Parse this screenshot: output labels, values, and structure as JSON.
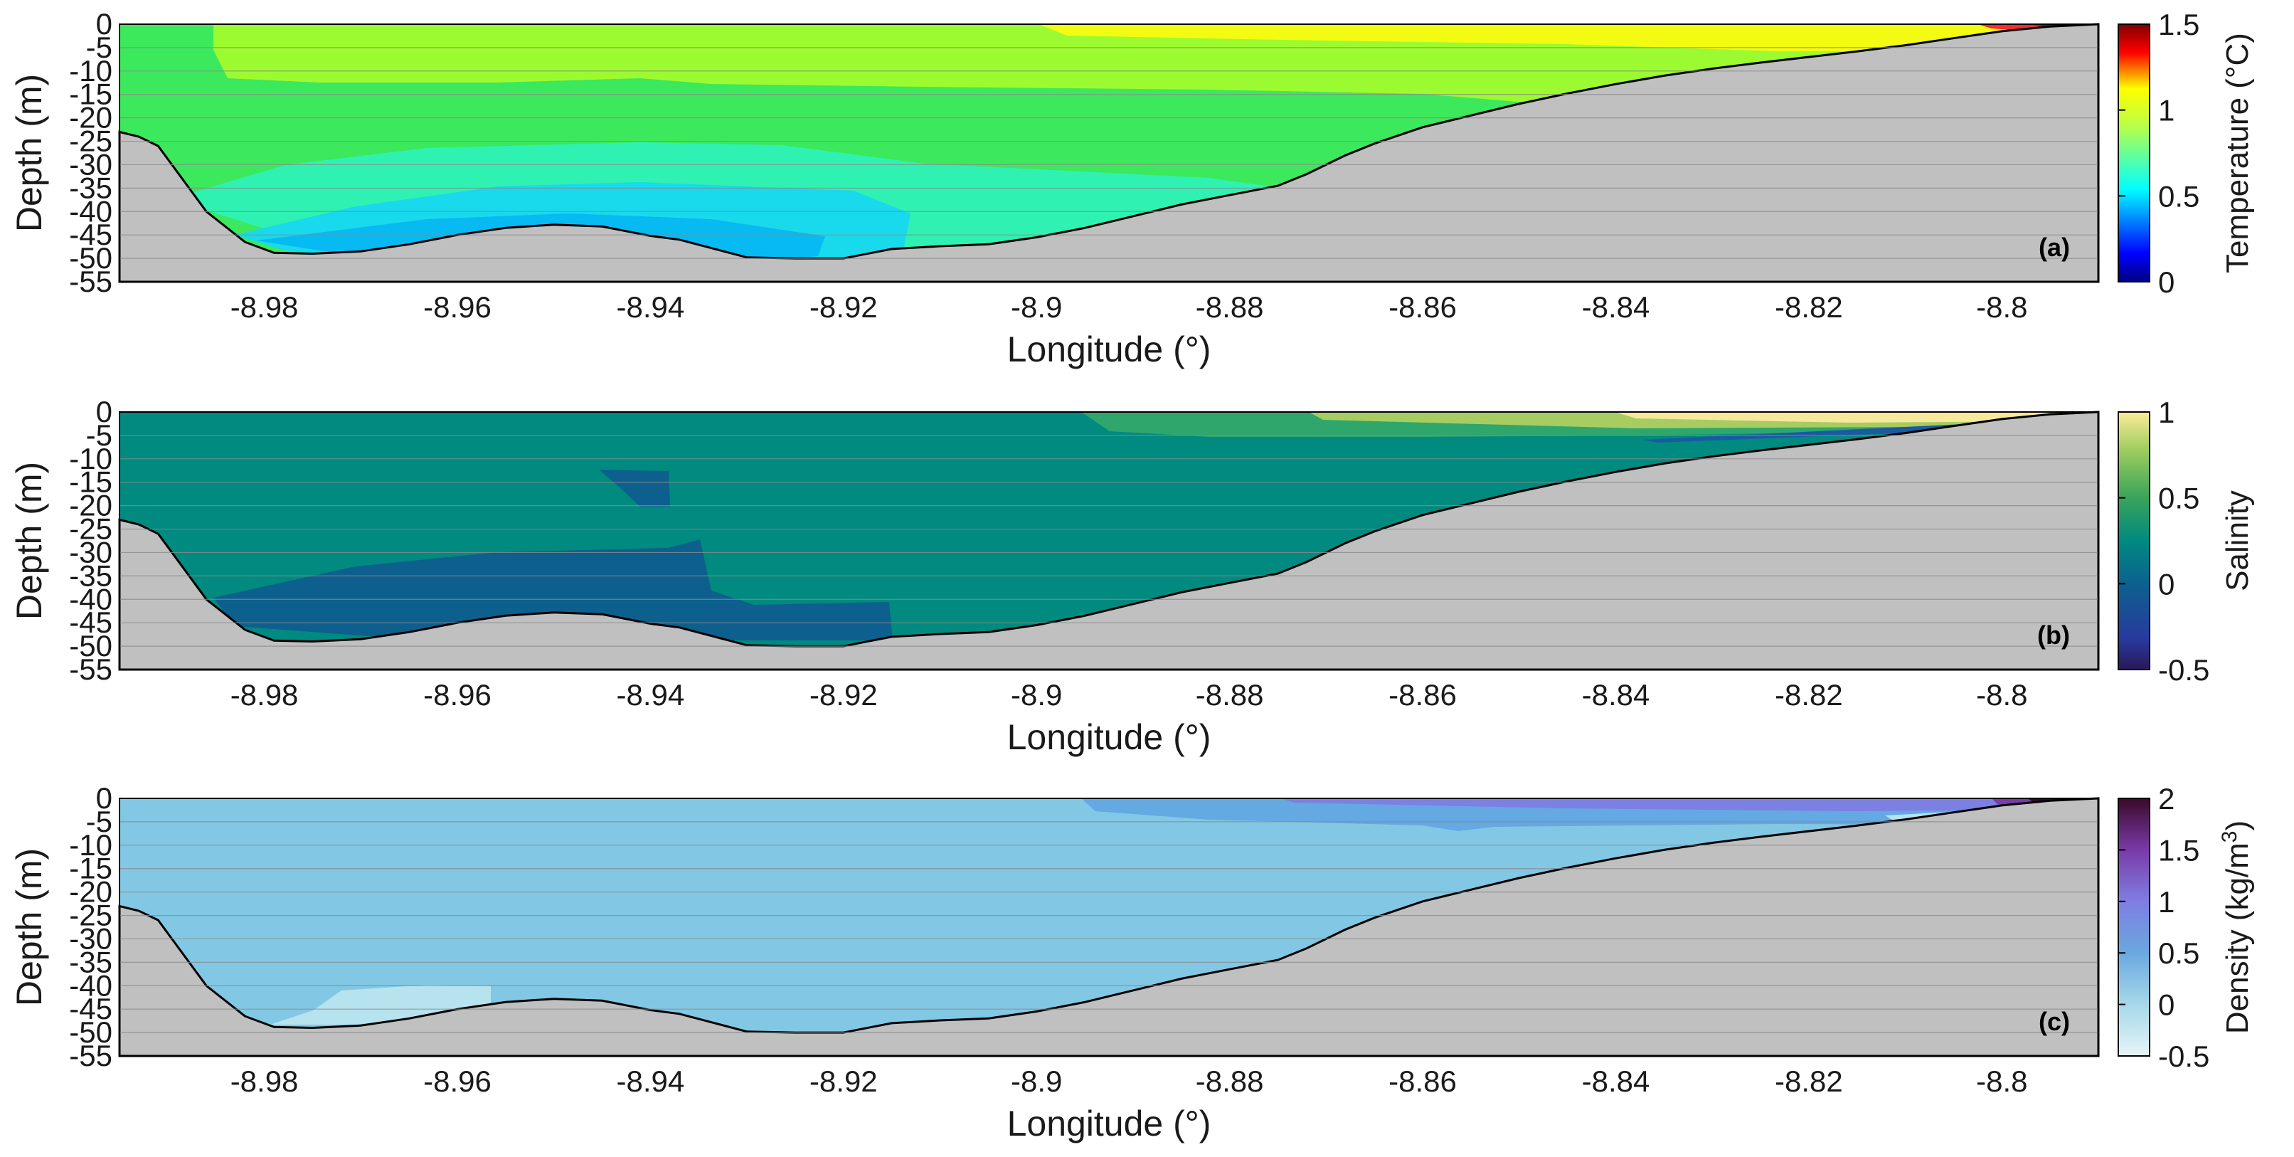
{
  "chart_data": [
    {
      "type": "heatmap",
      "panel_label": "(a)",
      "xlabel": "Longitude (°)",
      "ylabel": "Depth (m)",
      "xlim": [
        -8.995,
        -8.79
      ],
      "ylim": [
        -55,
        0
      ],
      "xticks": [
        "-8.98",
        "-8.96",
        "-8.94",
        "-8.92",
        "-8.9",
        "-8.88",
        "-8.86",
        "-8.84",
        "-8.82",
        "-8.8"
      ],
      "yticks": [
        "0",
        "-5",
        "-10",
        "-15",
        "-20",
        "-25",
        "-30",
        "-35",
        "-40",
        "-45",
        "-50",
        "-55"
      ],
      "grid": "horizontal",
      "colorbar": {
        "label": "Temperature (°C)",
        "ticks": [
          "0",
          "0.5",
          "1",
          "1.5"
        ],
        "range": [
          0,
          1.5
        ],
        "colormap": "jet"
      },
      "values": {
        "surface_east": 1.5,
        "surface_mid": 1.05,
        "surface_west": 0.95,
        "mid_depth": 0.8,
        "deep_basin": 0.55,
        "deepest": 0.5
      }
    },
    {
      "type": "heatmap",
      "panel_label": "(b)",
      "xlabel": "Longitude (°)",
      "ylabel": "Depth (m)",
      "xlim": [
        -8.995,
        -8.79
      ],
      "ylim": [
        -55,
        0
      ],
      "xticks": [
        "-8.98",
        "-8.96",
        "-8.94",
        "-8.92",
        "-8.9",
        "-8.88",
        "-8.86",
        "-8.84",
        "-8.82",
        "-8.8"
      ],
      "yticks": [
        "0",
        "-5",
        "-10",
        "-15",
        "-20",
        "-25",
        "-30",
        "-35",
        "-40",
        "-45",
        "-50",
        "-55"
      ],
      "grid": "horizontal",
      "colorbar": {
        "label": "Salinity",
        "ticks": [
          "1",
          "0.5",
          "0",
          "-0.5"
        ],
        "range": [
          -0.5,
          1
        ],
        "colormap": "haline"
      },
      "values": {
        "surface_east": 1.0,
        "surface_mid": 0.6,
        "bulk": 0.25,
        "deep_basin": 0.0,
        "thin_layer_east": -0.2
      }
    },
    {
      "type": "heatmap",
      "panel_label": "(c)",
      "xlabel": "Longitude (°)",
      "ylabel": "Depth (m)",
      "xlim": [
        -8.995,
        -8.79
      ],
      "ylim": [
        -55,
        0
      ],
      "xticks": [
        "-8.98",
        "-8.96",
        "-8.94",
        "-8.92",
        "-8.9",
        "-8.88",
        "-8.86",
        "-8.84",
        "-8.82",
        "-8.8"
      ],
      "yticks": [
        "0",
        "-5",
        "-10",
        "-15",
        "-20",
        "-25",
        "-30",
        "-35",
        "-40",
        "-45",
        "-50",
        "-55"
      ],
      "grid": "horizontal",
      "colorbar": {
        "label": "Density (kg/m",
        "label_sup": "3",
        "label_end": ")",
        "ticks": [
          "2",
          "1.5",
          "1",
          "0.5",
          "0",
          "-0.5"
        ],
        "range": [
          -0.5,
          2
        ],
        "colormap": "dense"
      },
      "values": {
        "surface_east": 2.0,
        "surface_mid": 0.9,
        "upper_layer": 0.4,
        "bulk": 0.1,
        "deep_patch": -0.3
      }
    }
  ],
  "seabed_profile": {
    "lon": [
      -8.995,
      -8.993,
      -8.991,
      -8.986,
      -8.982,
      -8.979,
      -8.975,
      -8.97,
      -8.965,
      -8.96,
      -8.955,
      -8.95,
      -8.945,
      -8.94,
      -8.937,
      -8.93,
      -8.925,
      -8.92,
      -8.918,
      -8.915,
      -8.91,
      -8.905,
      -8.9,
      -8.895,
      -8.89,
      -8.885,
      -8.88,
      -8.875,
      -8.872,
      -8.868,
      -8.865,
      -8.86,
      -8.855,
      -8.85,
      -8.845,
      -8.84,
      -8.835,
      -8.83,
      -8.825,
      -8.82,
      -8.815,
      -8.81,
      -8.805,
      -8.8,
      -8.795,
      -8.79
    ],
    "depth": [
      -23,
      -24,
      -26,
      -40,
      -46.5,
      -48.8,
      -49,
      -48.5,
      -47,
      -45,
      -43.5,
      -42.8,
      -43.2,
      -45.2,
      -46,
      -49.8,
      -50,
      -50,
      -49.2,
      -48,
      -47.4,
      -47,
      -45.5,
      -43.5,
      -41,
      -38.5,
      -36.5,
      -34.5,
      -32,
      -28,
      -25.5,
      -22,
      -19.5,
      -17,
      -14.8,
      -12.8,
      -11,
      -9.5,
      -8.2,
      -7,
      -5.8,
      -4.5,
      -3,
      -1.5,
      -0.5,
      0
    ]
  },
  "colors": {
    "seabed": "#c0c0c0",
    "grid": "#8a8a8a",
    "outline": "#000000"
  }
}
